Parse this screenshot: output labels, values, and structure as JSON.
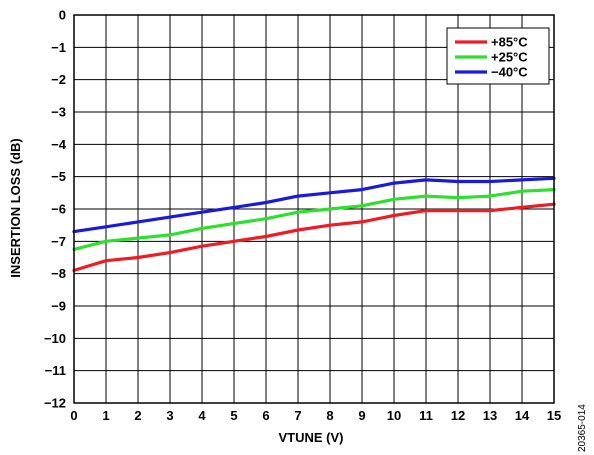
{
  "figure_id": "20365-014",
  "chart_data": {
    "type": "line",
    "title": "",
    "xlabel": "VTUNE (V)",
    "ylabel": "INSERTION LOSS (dB)",
    "xlim": [
      0,
      15
    ],
    "ylim": [
      -12,
      0
    ],
    "x_ticks": [
      "0",
      "1",
      "2",
      "3",
      "4",
      "5",
      "6",
      "7",
      "8",
      "9",
      "10",
      "11",
      "12",
      "13",
      "14",
      "15"
    ],
    "y_ticks": [
      "0",
      "−1",
      "−2",
      "−3",
      "−4",
      "−5",
      "−6",
      "−7",
      "−8",
      "−9",
      "−10",
      "−11",
      "−12"
    ],
    "grid": true,
    "legend_position": "top-right",
    "x": [
      0,
      1,
      2,
      3,
      4,
      5,
      6,
      7,
      8,
      9,
      10,
      11,
      12,
      13,
      14,
      15
    ],
    "series": [
      {
        "name": "+85°C",
        "color": "#ee1c25",
        "values": [
          -7.9,
          -7.6,
          -7.5,
          -7.35,
          -7.15,
          -7.0,
          -6.85,
          -6.65,
          -6.5,
          -6.4,
          -6.2,
          -6.05,
          -6.05,
          -6.05,
          -5.95,
          -5.85
        ]
      },
      {
        "name": "+25°C",
        "color": "#2ee02e",
        "values": [
          -7.25,
          -7.0,
          -6.9,
          -6.8,
          -6.6,
          -6.45,
          -6.3,
          -6.1,
          -6.0,
          -5.9,
          -5.7,
          -5.6,
          -5.65,
          -5.6,
          -5.45,
          -5.4
        ]
      },
      {
        "name": "−40°C",
        "color": "#1a1adc",
        "values": [
          -6.7,
          -6.55,
          -6.4,
          -6.25,
          -6.1,
          -5.95,
          -5.8,
          -5.6,
          -5.5,
          -5.4,
          -5.2,
          -5.1,
          -5.15,
          -5.15,
          -5.1,
          -5.05
        ]
      }
    ]
  }
}
